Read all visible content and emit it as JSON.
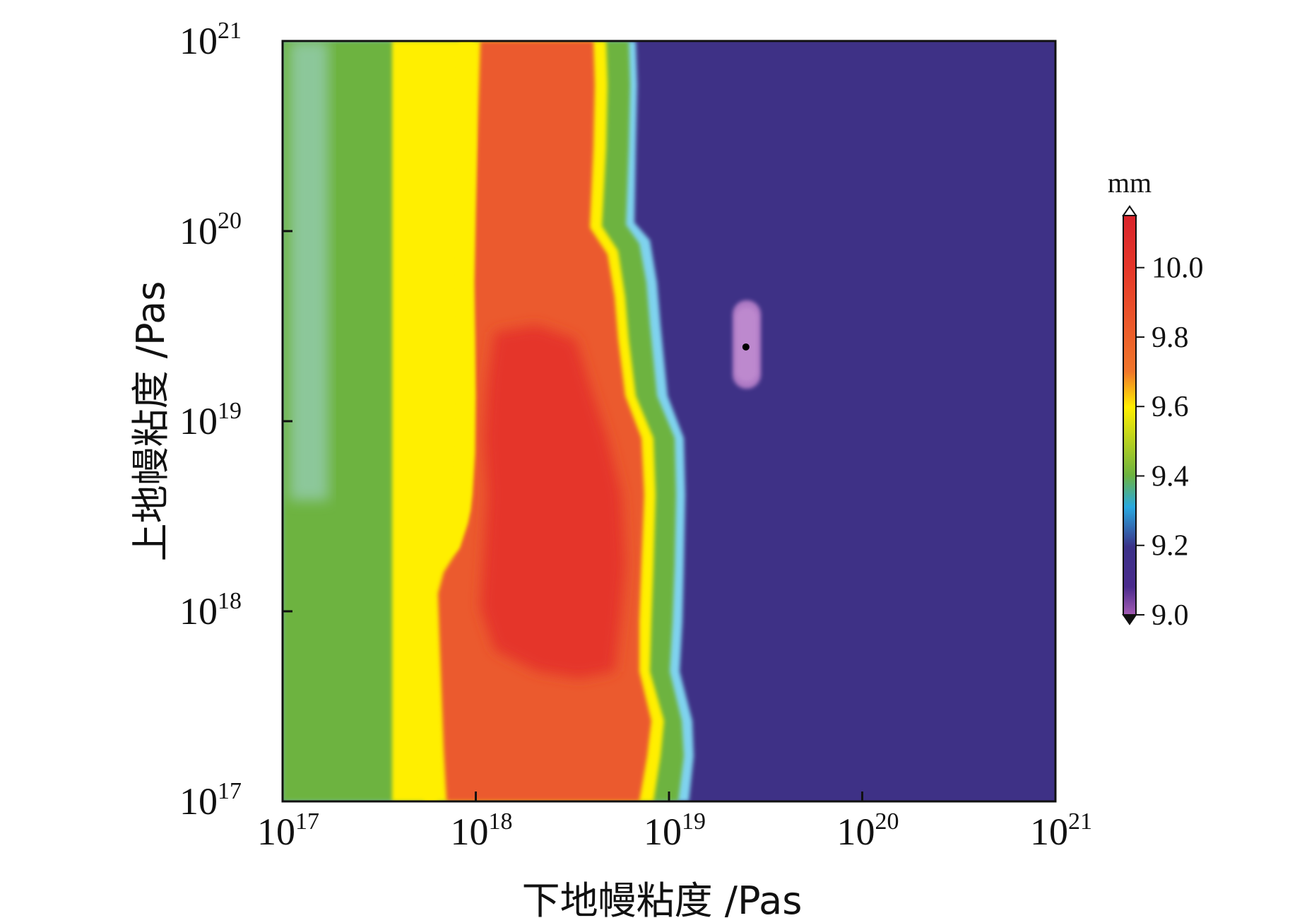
{
  "chart_data": {
    "type": "heatmap",
    "title": "",
    "xlabel": "下地幔粘度 /Pas",
    "ylabel": "上地幔粘度 /Pas",
    "x_scale": "log",
    "y_scale": "log",
    "xlim": [
      1e+17,
      1e+21
    ],
    "ylim": [
      1e+17,
      1e+21
    ],
    "x_ticks": [
      {
        "base": "10",
        "exp": "17",
        "value": 1e+17
      },
      {
        "base": "10",
        "exp": "18",
        "value": 1e+18
      },
      {
        "base": "10",
        "exp": "19",
        "value": 1e+19
      },
      {
        "base": "10",
        "exp": "20",
        "value": 1e+20
      },
      {
        "base": "10",
        "exp": "21",
        "value": 1e+21
      }
    ],
    "y_ticks": [
      {
        "base": "10",
        "exp": "17",
        "value": 1e+17
      },
      {
        "base": "10",
        "exp": "18",
        "value": 1e+18
      },
      {
        "base": "10",
        "exp": "19",
        "value": 1e+19
      },
      {
        "base": "10",
        "exp": "20",
        "value": 1e+20
      },
      {
        "base": "10",
        "exp": "21",
        "value": 1e+21
      }
    ],
    "colorbar": {
      "unit": "mm",
      "min": 9.0,
      "max": 10.15,
      "ticks": [
        "9.0",
        "9.2",
        "9.4",
        "9.6",
        "9.8",
        "10.0"
      ],
      "tick_values": [
        9.0,
        9.2,
        9.4,
        9.6,
        9.8,
        10.0
      ],
      "colors": [
        {
          "value": 9.0,
          "color": "#a35bb3"
        },
        {
          "value": 9.08,
          "color": "#4a2a8c"
        },
        {
          "value": 9.2,
          "color": "#3a3188"
        },
        {
          "value": 9.3,
          "color": "#29a9e0"
        },
        {
          "value": 9.4,
          "color": "#6db33f"
        },
        {
          "value": 9.6,
          "color": "#ffee00"
        },
        {
          "value": 9.7,
          "color": "#f0752a"
        },
        {
          "value": 10.0,
          "color": "#e53629"
        },
        {
          "value": 10.15,
          "color": "#d8232a"
        }
      ]
    },
    "marker": {
      "x": 2.5e+19,
      "y": 2.5e+19,
      "color": "#000000"
    }
  },
  "colors": {
    "pale_green": "#8cc79a",
    "green": "#6db33f",
    "yellow": "#ffef00",
    "orange": "#eb5a2e",
    "red": "#e5352a",
    "cyan": "#5ec8ea",
    "purple": "#3e3186",
    "pink": "#b07cc6"
  }
}
